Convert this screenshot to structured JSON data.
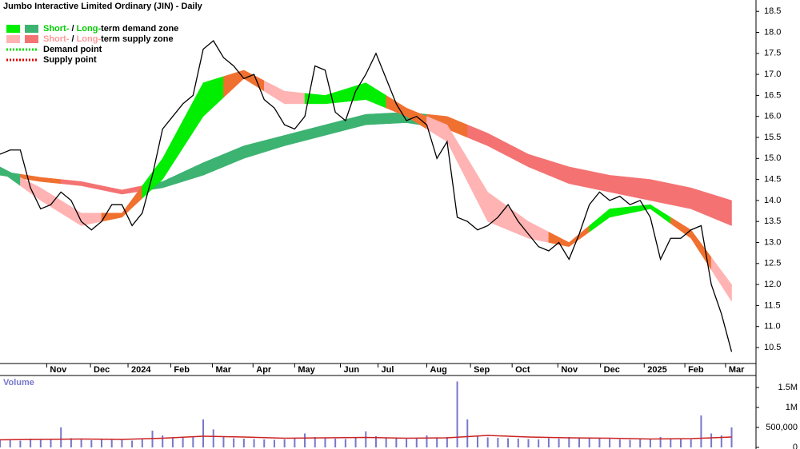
{
  "chart_data": [
    {
      "type": "price",
      "title": "Jumbo Interactive Limited Ordinary (JIN) - Daily",
      "xlim": [
        0,
        74.4
      ],
      "xticks": [
        {
          "value": 4.6,
          "label": "Nov"
        },
        {
          "value": 8.9,
          "label": "Dec"
        },
        {
          "value": 12.6,
          "label": "2024"
        },
        {
          "value": 16.8,
          "label": "Feb"
        },
        {
          "value": 20.9,
          "label": "Mar"
        },
        {
          "value": 24.9,
          "label": "Apr"
        },
        {
          "value": 29.0,
          "label": "May"
        },
        {
          "value": 33.5,
          "label": "Jun"
        },
        {
          "value": 37.2,
          "label": "Jul"
        },
        {
          "value": 42.0,
          "label": "Aug"
        },
        {
          "value": 46.3,
          "label": "Sep"
        },
        {
          "value": 50.4,
          "label": "Oct"
        },
        {
          "value": 54.9,
          "label": "Nov"
        },
        {
          "value": 59.1,
          "label": "Dec"
        },
        {
          "value": 63.4,
          "label": "2025"
        },
        {
          "value": 67.4,
          "label": "Feb"
        },
        {
          "value": 71.4,
          "label": "Mar"
        }
      ],
      "ylim": [
        10.12,
        18.77
      ],
      "yticks": [
        10.5,
        {
          "value": 11,
          "label": "11.0"
        },
        11.5,
        {
          "value": 12,
          "label": "12.0"
        },
        12.5,
        {
          "value": 13,
          "label": "13.0"
        },
        13.5,
        {
          "value": 14,
          "label": "14.0"
        },
        14.5,
        {
          "value": 15,
          "label": "15.0"
        },
        15.5,
        {
          "value": 16,
          "label": "16.0"
        },
        16.5,
        {
          "value": 17,
          "label": "17.0"
        },
        17.5,
        {
          "value": 18,
          "label": "18.0"
        },
        18.5
      ],
      "x": [
        0,
        1,
        2,
        3,
        4,
        5,
        6,
        7,
        8,
        9,
        10,
        11,
        12,
        13,
        14,
        15,
        16,
        17,
        18,
        19,
        20,
        21,
        22,
        23,
        24,
        25,
        26,
        27,
        28,
        29,
        30,
        31,
        32,
        33,
        34,
        35,
        36,
        37,
        38,
        39,
        40,
        41,
        42,
        43,
        44,
        45,
        46,
        47,
        48,
        49,
        50,
        51,
        52,
        53,
        54,
        55,
        56,
        57,
        58,
        59,
        60,
        61,
        62,
        63,
        64,
        65,
        66,
        67,
        68,
        69,
        70,
        71,
        72
      ],
      "values": [
        15.1,
        15.2,
        15.2,
        14.3,
        13.8,
        13.9,
        14.2,
        14.0,
        13.5,
        13.3,
        13.5,
        13.9,
        13.9,
        13.4,
        13.7,
        14.6,
        15.7,
        16.0,
        16.3,
        16.5,
        17.6,
        17.8,
        17.4,
        17.2,
        16.9,
        17.0,
        16.4,
        16.2,
        15.8,
        15.7,
        16.0,
        17.2,
        17.1,
        16.1,
        15.9,
        16.6,
        17.0,
        17.5,
        16.9,
        16.3,
        15.9,
        16.0,
        15.8,
        15.0,
        15.4,
        13.6,
        13.5,
        13.3,
        13.4,
        13.6,
        13.9,
        13.5,
        13.2,
        12.9,
        12.8,
        13.0,
        12.6,
        13.2,
        13.9,
        14.2,
        14.0,
        14.1,
        13.9,
        14.0,
        13.6,
        12.6,
        13.1,
        13.1,
        13.3,
        13.4,
        12.0,
        11.3,
        10.4
      ],
      "color": "#000000",
      "zones": [
        {
          "x": [
            0,
            4,
            8,
            12,
            16,
            20,
            24,
            28,
            32,
            36,
            40,
            44,
            48,
            52,
            56,
            60,
            64,
            68,
            72
          ],
          "upper": [
            14.7,
            14.55,
            14.45,
            14.25,
            14.45,
            14.9,
            15.3,
            15.55,
            15.8,
            16.05,
            16.1,
            16.0,
            15.6,
            15.1,
            14.8,
            14.6,
            14.5,
            14.3,
            14.0
          ],
          "lower": [
            14.6,
            14.45,
            14.35,
            14.15,
            14.3,
            14.6,
            15.0,
            15.3,
            15.55,
            15.8,
            15.85,
            15.7,
            15.3,
            14.8,
            14.4,
            14.2,
            14.0,
            13.8,
            13.4
          ],
          "colors": [
            "#3cb371",
            "#f07030",
            "#f47272",
            "#f47272",
            "#3cb371",
            "#3cb371",
            "#3cb371",
            "#3cb371",
            "#3cb371",
            "#3cb371",
            "#3cb371",
            "#f07030",
            "#f47272",
            "#f47272",
            "#f47272",
            "#f47272",
            "#f47272",
            "#f47272",
            "#f47272"
          ]
        },
        {
          "x": [
            0,
            4,
            8,
            12,
            16,
            20,
            24,
            28,
            32,
            36,
            40,
            44,
            48,
            52,
            56,
            60,
            64,
            68,
            72
          ],
          "upper": [
            14.8,
            14.3,
            13.7,
            13.7,
            15.0,
            16.8,
            17.1,
            16.6,
            16.5,
            16.8,
            16.2,
            15.8,
            14.2,
            13.5,
            13.0,
            13.8,
            13.9,
            13.3,
            12.0
          ],
          "lower": [
            14.7,
            14.0,
            13.4,
            13.6,
            14.5,
            16.0,
            16.9,
            16.3,
            16.3,
            16.4,
            16.0,
            15.4,
            13.5,
            13.1,
            12.9,
            13.6,
            13.8,
            13.1,
            11.6
          ],
          "colors": [
            "#3cb371",
            "#ffb3b3",
            "#ffb3b3",
            "#f07030",
            "#00ee00",
            "#00ee00",
            "#f07030",
            "#ffb3b3",
            "#00ee00",
            "#00ee00",
            "#f07030",
            "#ffb3b3",
            "#ffb3b3",
            "#ffb3b3",
            "#f07030",
            "#00ee00",
            "#00ee00",
            "#f07030",
            "#ffb3b3"
          ]
        }
      ],
      "legend": [
        {
          "swatches": [
            "#00ee00",
            "#3cb371"
          ],
          "parts": [
            {
              "text": "Short-",
              "color": "#00cc00"
            },
            {
              "text": " / ",
              "color": "#000000"
            },
            {
              "text": "Long-",
              "color": "#00cc00"
            },
            {
              "text": "term demand zone",
              "color": "#000000"
            }
          ]
        },
        {
          "swatches": [
            "#ffb3b3",
            "#f47272"
          ],
          "parts": [
            {
              "text": "Short-",
              "color": "#ff9999"
            },
            {
              "text": " / ",
              "color": "#000000"
            },
            {
              "text": "Long-",
              "color": "#ff9999"
            },
            {
              "text": "term supply zone",
              "color": "#000000"
            }
          ]
        },
        {
          "dotted": "#00dd00",
          "parts": [
            {
              "text": "Demand point",
              "color": "#000000"
            }
          ]
        },
        {
          "dotted": "#dd0000",
          "parts": [
            {
              "text": "Supply point",
              "color": "#000000"
            }
          ]
        }
      ]
    },
    {
      "type": "bar",
      "label": "Volume",
      "color": "#7777cc",
      "ylim": [
        0,
        1800000
      ],
      "yticks": [
        0,
        {
          "value": 500000,
          "label": "500,000"
        },
        {
          "value": 1000000,
          "label": "1M"
        },
        {
          "value": 1500000,
          "label": "1.5M"
        }
      ],
      "values": [
        180000,
        200000,
        170000,
        220000,
        190000,
        210000,
        500000,
        230000,
        200000,
        180000,
        190000,
        210000,
        200000,
        170000,
        220000,
        420000,
        300000,
        250000,
        240000,
        260000,
        700000,
        450000,
        280000,
        230000,
        220000,
        210000,
        200000,
        190000,
        200000,
        230000,
        350000,
        260000,
        240000,
        220000,
        210000,
        250000,
        400000,
        280000,
        240000,
        220000,
        210000,
        230000,
        300000,
        250000,
        260000,
        1650000,
        700000,
        300000,
        250000,
        240000,
        230000,
        220000,
        210000,
        200000,
        230000,
        220000,
        260000,
        240000,
        230000,
        220000,
        210000,
        200000,
        190000,
        210000,
        220000,
        260000,
        230000,
        210000,
        200000,
        800000,
        350000,
        300000,
        500000
      ],
      "avg": {
        "x": [
          0,
          4,
          8,
          12,
          16,
          20,
          24,
          28,
          32,
          36,
          40,
          44,
          48,
          52,
          56,
          60,
          64,
          68,
          72
        ],
        "values": [
          190000,
          200000,
          210000,
          200000,
          230000,
          280000,
          260000,
          230000,
          240000,
          250000,
          230000,
          240000,
          300000,
          260000,
          240000,
          230000,
          210000,
          220000,
          260000
        ],
        "color": "#cc2222"
      }
    }
  ]
}
